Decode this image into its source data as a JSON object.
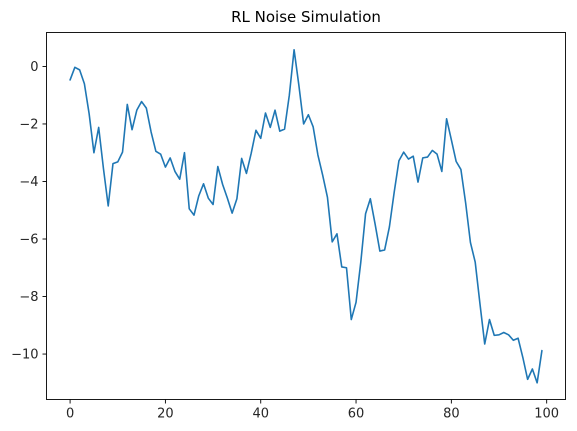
{
  "chart_data": {
    "type": "line",
    "title": "RL Noise Simulation",
    "xlabel": "",
    "ylabel": "",
    "xlim": [
      -4.95,
      103.95
    ],
    "ylim": [
      -11.58,
      1.18
    ],
    "x_ticks": [
      0,
      20,
      40,
      60,
      80,
      100
    ],
    "x_tick_labels": [
      "0",
      "20",
      "40",
      "60",
      "80",
      "100"
    ],
    "y_ticks": [
      0,
      -2,
      -4,
      -6,
      -8,
      -10
    ],
    "y_tick_labels": [
      "0",
      "−2",
      "−4",
      "−6",
      "−8",
      "−10"
    ],
    "grid": false,
    "legend": "none",
    "line_color": "#1f77b4",
    "series": [
      {
        "x": [
          0,
          1,
          2,
          3,
          4,
          5,
          6,
          7,
          8,
          9,
          10,
          11,
          12,
          13,
          14,
          15,
          16,
          17,
          18,
          19,
          20,
          21,
          22,
          23,
          24,
          25,
          26,
          27,
          28,
          29,
          30,
          31,
          32,
          33,
          34,
          35,
          36,
          37,
          38,
          39,
          40,
          41,
          42,
          43,
          44,
          45,
          46,
          47,
          48,
          49,
          50,
          51,
          52,
          53,
          54,
          55,
          56,
          57,
          58,
          59,
          60,
          61,
          62,
          63,
          64,
          65,
          66,
          67,
          68,
          69,
          70,
          71,
          72,
          73,
          74,
          75,
          76,
          77,
          78,
          79,
          80,
          81,
          82,
          83,
          84,
          85,
          86,
          87,
          88,
          89,
          90,
          91,
          92,
          93,
          94,
          95,
          96,
          97,
          98,
          99
        ],
        "y": [
          -0.47,
          -0.03,
          -0.12,
          -0.6,
          -1.65,
          -3.0,
          -2.12,
          -3.55,
          -4.85,
          -3.38,
          -3.32,
          -2.98,
          -1.32,
          -2.2,
          -1.52,
          -1.22,
          -1.45,
          -2.28,
          -2.95,
          -3.05,
          -3.5,
          -3.18,
          -3.65,
          -3.92,
          -3.0,
          -4.95,
          -5.17,
          -4.5,
          -4.08,
          -4.58,
          -4.8,
          -3.48,
          -4.1,
          -4.58,
          -5.1,
          -4.6,
          -3.2,
          -3.72,
          -3.02,
          -2.22,
          -2.5,
          -1.62,
          -2.12,
          -1.52,
          -2.25,
          -2.18,
          -1.0,
          0.58,
          -0.65,
          -2.0,
          -1.68,
          -2.1,
          -3.08,
          -3.78,
          -4.55,
          -6.1,
          -5.82,
          -6.97,
          -7.0,
          -8.8,
          -8.2,
          -6.8,
          -5.12,
          -4.6,
          -5.48,
          -6.42,
          -6.38,
          -5.58,
          -4.38,
          -3.28,
          -2.98,
          -3.22,
          -3.12,
          -4.02,
          -3.18,
          -3.15,
          -2.92,
          -3.05,
          -3.65,
          -1.82,
          -2.55,
          -3.3,
          -3.58,
          -4.75,
          -6.12,
          -6.8,
          -8.25,
          -9.65,
          -8.8,
          -9.35,
          -9.33,
          -9.25,
          -9.33,
          -9.52,
          -9.45,
          -10.12,
          -10.88,
          -10.52,
          -11.0,
          -9.88
        ]
      }
    ]
  }
}
